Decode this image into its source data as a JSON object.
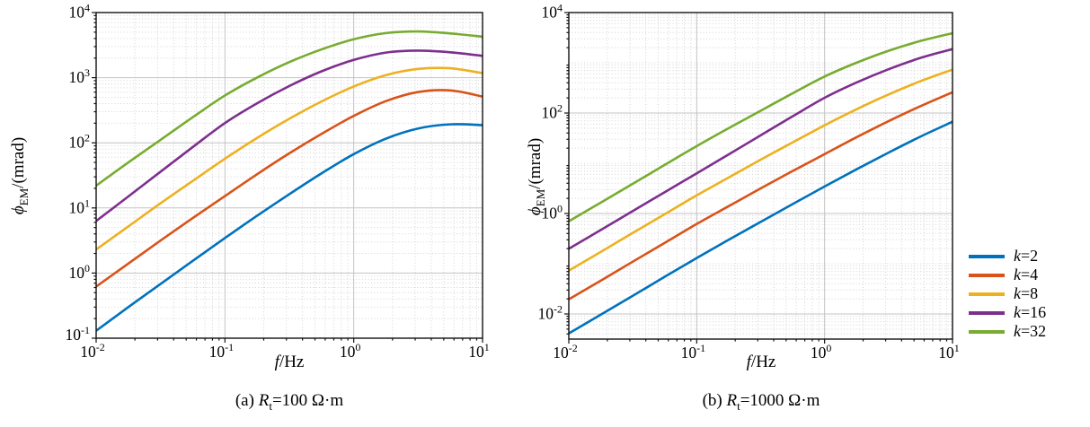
{
  "chart_data": {
    "type": "line",
    "x_scale": "log",
    "y_scale": "log",
    "grid": "major-solid + minor-dotted",
    "x_label": {
      "symbol": "f",
      "suffix": "/Hz"
    },
    "y_label": {
      "symbol": "ϕ",
      "subscript": "EM",
      "suffix": "/(mrad)"
    },
    "x_tick_labels": [
      "10⁻²",
      "10⁻¹",
      "10⁰",
      "10¹"
    ],
    "xlim_log10": [
      -2,
      1
    ],
    "x_tick_exponents": [
      -2,
      -1,
      0,
      1
    ],
    "x": [
      0.01,
      0.01778,
      0.03162,
      0.05623,
      0.1,
      0.17783,
      0.31623,
      0.56234,
      1,
      1.77828,
      3.16228,
      5.62341,
      10
    ],
    "legend": {
      "position": "right-outside",
      "items": [
        {
          "var": "k",
          "eq": "=2",
          "color": "#0072BD"
        },
        {
          "var": "k",
          "eq": "=4",
          "color": "#D95319"
        },
        {
          "var": "k",
          "eq": "=8",
          "color": "#EDB120"
        },
        {
          "var": "k",
          "eq": "=16",
          "color": "#7E2F8E"
        },
        {
          "var": "k",
          "eq": "=32",
          "color": "#77AC30"
        }
      ]
    },
    "charts": [
      {
        "caption": {
          "prefix": "(a) ",
          "symbol": "R",
          "subscript": "t",
          "suffix": "=100 Ω·m"
        },
        "ylim_log10": [
          -1,
          4
        ],
        "y_tick_exponents": [
          4,
          3,
          2,
          1,
          0,
          -1
        ],
        "y_tick_labels": [
          "10⁴",
          "10³",
          "10²",
          "10¹",
          "10⁰",
          "10⁻¹"
        ],
        "series": [
          {
            "name": "k=2",
            "color": "#0072BD",
            "y": [
              0.13,
              0.3,
              0.68,
              1.54,
              3.45,
              7.6,
              16.3,
              34,
              67,
              116,
              166,
              192,
              187
            ]
          },
          {
            "name": "k=4",
            "color": "#D95319",
            "y": [
              0.62,
              1.4,
              3.16,
              7.0,
              15.2,
              33,
              69,
              137,
              259,
              437,
              603,
              638,
              513
            ]
          },
          {
            "name": "k=8",
            "color": "#EDB120",
            "y": [
              2.3,
              5.2,
              11.8,
              26,
              57,
              119,
              234,
              431,
              732,
              1095,
              1363,
              1395,
              1174
            ]
          },
          {
            "name": "k=16",
            "color": "#7E2F8E",
            "y": [
              6.3,
              15,
              36,
              86,
              201,
              405,
              745,
              1252,
              1873,
              2427,
              2600,
              2455,
              2163
            ]
          },
          {
            "name": "k=32",
            "color": "#77AC30",
            "y": [
              22,
              50,
              111,
              247,
              533,
              1005,
              1736,
              2719,
              3886,
              4838,
              5124,
              4780,
              4261
            ]
          }
        ]
      },
      {
        "caption": {
          "prefix": "(b) ",
          "symbol": "R",
          "subscript": "t",
          "suffix": "=1000 Ω·m"
        },
        "ylim_log10": [
          -2.5,
          4
        ],
        "y_tick_exponents": [
          4,
          2,
          0,
          -2
        ],
        "y_tick_labels": [
          "10⁴",
          "10²",
          "10⁰",
          "10⁻²"
        ],
        "series": [
          {
            "name": "k=2",
            "color": "#0072BD",
            "y": [
              0.0041,
              0.0097,
              0.023,
              0.055,
              0.13,
              0.3,
              0.68,
              1.54,
              3.45,
              7.6,
              16.3,
              34,
              67
            ]
          },
          {
            "name": "k=4",
            "color": "#D95319",
            "y": [
              0.0196,
              0.046,
              0.11,
              0.26,
              0.62,
              1.4,
              3.16,
              7.0,
              15.2,
              33,
              69,
              137,
              259
            ]
          },
          {
            "name": "k=8",
            "color": "#EDB120",
            "y": [
              0.073,
              0.172,
              0.41,
              0.97,
              2.3,
              5.2,
              11.8,
              26,
              57,
              119,
              234,
              431,
              732
            ]
          },
          {
            "name": "k=16",
            "color": "#7E2F8E",
            "y": [
              0.199,
              0.47,
              1.12,
              2.66,
              6.3,
              15,
              36,
              86,
              201,
              405,
              745,
              1252,
              1873
            ]
          },
          {
            "name": "k=32",
            "color": "#77AC30",
            "y": [
              0.7,
              1.65,
              3.9,
              9.3,
              22,
              50,
              111,
              247,
              533,
              1005,
              1736,
              2719,
              3886
            ]
          }
        ]
      }
    ]
  }
}
